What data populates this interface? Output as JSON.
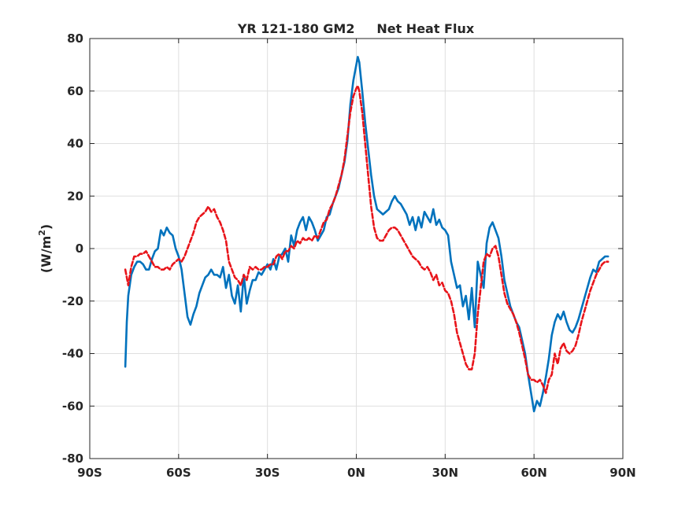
{
  "chart_data": {
    "type": "line",
    "title": "YR 121-180 GM2     Net Heat Flux",
    "ylabel": "(W/m",
    "ylabel_sup": "2",
    "ylabel_close": ")",
    "xlabel": "",
    "xlim": [
      -90,
      90
    ],
    "ylim": [
      -80,
      80
    ],
    "x_ticks": [
      -90,
      -60,
      -30,
      0,
      30,
      60,
      90
    ],
    "x_tick_labels": [
      "90S",
      "60S",
      "30S",
      "0N",
      "30N",
      "60N",
      "90N"
    ],
    "y_ticks": [
      -80,
      -60,
      -40,
      -20,
      0,
      20,
      40,
      60,
      80
    ],
    "y_tick_labels": [
      "-80",
      "-60",
      "-40",
      "-20",
      "0",
      "20",
      "40",
      "60",
      "80"
    ],
    "grid": true,
    "colors": {
      "series_blue": "#0072bd",
      "series_red": "#e8141a",
      "axis": "#262626",
      "grid": "#dfdfdf"
    },
    "series": [
      {
        "style": "solid",
        "color": "#0072bd",
        "points": [
          [
            -78,
            -45
          ],
          [
            -77.5,
            -28
          ],
          [
            -77,
            -18
          ],
          [
            -76,
            -10
          ],
          [
            -75,
            -7
          ],
          [
            -74,
            -5
          ],
          [
            -73,
            -5
          ],
          [
            -72,
            -6
          ],
          [
            -71,
            -8
          ],
          [
            -70,
            -8
          ],
          [
            -69,
            -4
          ],
          [
            -68,
            -1
          ],
          [
            -67,
            0
          ],
          [
            -66,
            7
          ],
          [
            -65,
            5
          ],
          [
            -64,
            8
          ],
          [
            -63,
            6
          ],
          [
            -62,
            5
          ],
          [
            -61,
            0
          ],
          [
            -60,
            -3
          ],
          [
            -59,
            -8
          ],
          [
            -58,
            -17
          ],
          [
            -57,
            -26
          ],
          [
            -56,
            -29
          ],
          [
            -55,
            -25
          ],
          [
            -54,
            -22
          ],
          [
            -53,
            -17
          ],
          [
            -52,
            -14
          ],
          [
            -51,
            -11
          ],
          [
            -50,
            -10
          ],
          [
            -49,
            -8
          ],
          [
            -48,
            -10
          ],
          [
            -47,
            -10
          ],
          [
            -46,
            -11
          ],
          [
            -45,
            -7
          ],
          [
            -44,
            -15
          ],
          [
            -43,
            -10
          ],
          [
            -42,
            -18
          ],
          [
            -41,
            -21
          ],
          [
            -40,
            -14
          ],
          [
            -39,
            -24
          ],
          [
            -38,
            -10
          ],
          [
            -37,
            -21
          ],
          [
            -36,
            -16
          ],
          [
            -35,
            -12
          ],
          [
            -34,
            -12
          ],
          [
            -33,
            -9
          ],
          [
            -32,
            -10
          ],
          [
            -31,
            -8
          ],
          [
            -30,
            -6
          ],
          [
            -29,
            -8
          ],
          [
            -28,
            -4
          ],
          [
            -27,
            -8
          ],
          [
            -26,
            -3
          ],
          [
            -25,
            -2
          ],
          [
            -24,
            0
          ],
          [
            -23,
            -5
          ],
          [
            -22,
            5
          ],
          [
            -21,
            1
          ],
          [
            -20,
            7
          ],
          [
            -19,
            10
          ],
          [
            -18,
            12
          ],
          [
            -17,
            7
          ],
          [
            -16,
            12
          ],
          [
            -15,
            10
          ],
          [
            -14,
            7
          ],
          [
            -13,
            3
          ],
          [
            -12,
            5
          ],
          [
            -11,
            7
          ],
          [
            -10,
            12
          ],
          [
            -9,
            13
          ],
          [
            -8,
            17
          ],
          [
            -7,
            20
          ],
          [
            -6,
            23
          ],
          [
            -5,
            28
          ],
          [
            -4,
            33
          ],
          [
            -3,
            41
          ],
          [
            -2,
            55
          ],
          [
            -1,
            64
          ],
          [
            0,
            70
          ],
          [
            0.5,
            73
          ],
          [
            1,
            71
          ],
          [
            2,
            60
          ],
          [
            3,
            48
          ],
          [
            4,
            38
          ],
          [
            5,
            28
          ],
          [
            6,
            20
          ],
          [
            7,
            15
          ],
          [
            8,
            14
          ],
          [
            9,
            13
          ],
          [
            10,
            14
          ],
          [
            11,
            15
          ],
          [
            12,
            18
          ],
          [
            13,
            20
          ],
          [
            14,
            18
          ],
          [
            15,
            17
          ],
          [
            16,
            15
          ],
          [
            17,
            13
          ],
          [
            18,
            9
          ],
          [
            19,
            12
          ],
          [
            20,
            7
          ],
          [
            21,
            12
          ],
          [
            22,
            8
          ],
          [
            23,
            14
          ],
          [
            24,
            12
          ],
          [
            25,
            10
          ],
          [
            26,
            15
          ],
          [
            27,
            9
          ],
          [
            28,
            11
          ],
          [
            29,
            8
          ],
          [
            30,
            7
          ],
          [
            31,
            5
          ],
          [
            32,
            -5
          ],
          [
            33,
            -10
          ],
          [
            34,
            -15
          ],
          [
            35,
            -14
          ],
          [
            36,
            -22
          ],
          [
            37,
            -18
          ],
          [
            38,
            -27
          ],
          [
            39,
            -15
          ],
          [
            40,
            -30
          ],
          [
            41,
            -5
          ],
          [
            42,
            -10
          ],
          [
            43,
            -15
          ],
          [
            44,
            2
          ],
          [
            45,
            8
          ],
          [
            46,
            10
          ],
          [
            47,
            7
          ],
          [
            48,
            4
          ],
          [
            49,
            -3
          ],
          [
            50,
            -12
          ],
          [
            51,
            -17
          ],
          [
            52,
            -22
          ],
          [
            53,
            -25
          ],
          [
            54,
            -28
          ],
          [
            55,
            -30
          ],
          [
            56,
            -35
          ],
          [
            57,
            -40
          ],
          [
            58,
            -48
          ],
          [
            59,
            -55
          ],
          [
            60,
            -62
          ],
          [
            61,
            -58
          ],
          [
            62,
            -60
          ],
          [
            63,
            -55
          ],
          [
            64,
            -49
          ],
          [
            65,
            -42
          ],
          [
            66,
            -33
          ],
          [
            67,
            -28
          ],
          [
            68,
            -25
          ],
          [
            69,
            -27
          ],
          [
            70,
            -24
          ],
          [
            71,
            -28
          ],
          [
            72,
            -31
          ],
          [
            73,
            -32
          ],
          [
            74,
            -30
          ],
          [
            75,
            -27
          ],
          [
            76,
            -23
          ],
          [
            77,
            -19
          ],
          [
            78,
            -15
          ],
          [
            79,
            -11
          ],
          [
            80,
            -8
          ],
          [
            81,
            -9
          ],
          [
            82,
            -5
          ],
          [
            83,
            -4
          ],
          [
            84,
            -3
          ],
          [
            85,
            -3
          ]
        ]
      },
      {
        "style": "dashed",
        "color": "#e8141a",
        "points": [
          [
            -78,
            -8
          ],
          [
            -77,
            -14
          ],
          [
            -76,
            -7
          ],
          [
            -75,
            -3
          ],
          [
            -74,
            -3
          ],
          [
            -73,
            -2
          ],
          [
            -72,
            -2
          ],
          [
            -71,
            -1
          ],
          [
            -70,
            -3
          ],
          [
            -69,
            -5
          ],
          [
            -68,
            -7
          ],
          [
            -67,
            -7
          ],
          [
            -66,
            -8
          ],
          [
            -65,
            -8
          ],
          [
            -64,
            -7
          ],
          [
            -63,
            -8
          ],
          [
            -62,
            -6
          ],
          [
            -61,
            -5
          ],
          [
            -60,
            -4
          ],
          [
            -59,
            -5
          ],
          [
            -58,
            -3
          ],
          [
            -57,
            0
          ],
          [
            -56,
            3
          ],
          [
            -55,
            6
          ],
          [
            -54,
            10
          ],
          [
            -53,
            12
          ],
          [
            -52,
            13
          ],
          [
            -51,
            14
          ],
          [
            -50,
            16
          ],
          [
            -49,
            14
          ],
          [
            -48,
            15
          ],
          [
            -47,
            12
          ],
          [
            -46,
            10
          ],
          [
            -45,
            7
          ],
          [
            -44,
            3
          ],
          [
            -43,
            -5
          ],
          [
            -42,
            -8
          ],
          [
            -41,
            -11
          ],
          [
            -40,
            -12
          ],
          [
            -39,
            -14
          ],
          [
            -38,
            -10
          ],
          [
            -37,
            -12
          ],
          [
            -36,
            -7
          ],
          [
            -35,
            -8
          ],
          [
            -34,
            -7
          ],
          [
            -33,
            -8
          ],
          [
            -32,
            -8
          ],
          [
            -31,
            -7
          ],
          [
            -30,
            -7
          ],
          [
            -29,
            -6
          ],
          [
            -28,
            -6
          ],
          [
            -27,
            -3
          ],
          [
            -26,
            -2
          ],
          [
            -25,
            -4
          ],
          [
            -24,
            -1
          ],
          [
            -23,
            -1
          ],
          [
            -22,
            1
          ],
          [
            -21,
            0
          ],
          [
            -20,
            3
          ],
          [
            -19,
            2
          ],
          [
            -18,
            4
          ],
          [
            -17,
            3
          ],
          [
            -16,
            4
          ],
          [
            -15,
            3
          ],
          [
            -14,
            5
          ],
          [
            -13,
            4
          ],
          [
            -12,
            7
          ],
          [
            -11,
            10
          ],
          [
            -10,
            11
          ],
          [
            -9,
            15
          ],
          [
            -8,
            17
          ],
          [
            -7,
            20
          ],
          [
            -6,
            24
          ],
          [
            -5,
            28
          ],
          [
            -4,
            34
          ],
          [
            -3,
            43
          ],
          [
            -2,
            52
          ],
          [
            -1,
            58
          ],
          [
            0,
            61
          ],
          [
            0.5,
            62
          ],
          [
            1,
            60
          ],
          [
            2,
            52
          ],
          [
            3,
            40
          ],
          [
            4,
            28
          ],
          [
            5,
            16
          ],
          [
            6,
            8
          ],
          [
            7,
            4
          ],
          [
            8,
            3
          ],
          [
            9,
            3
          ],
          [
            10,
            5
          ],
          [
            11,
            7
          ],
          [
            12,
            8
          ],
          [
            13,
            8
          ],
          [
            14,
            7
          ],
          [
            15,
            5
          ],
          [
            16,
            3
          ],
          [
            17,
            1
          ],
          [
            18,
            -1
          ],
          [
            19,
            -3
          ],
          [
            20,
            -4
          ],
          [
            21,
            -5
          ],
          [
            22,
            -7
          ],
          [
            23,
            -8
          ],
          [
            24,
            -7
          ],
          [
            25,
            -9
          ],
          [
            26,
            -12
          ],
          [
            27,
            -10
          ],
          [
            28,
            -14
          ],
          [
            29,
            -13
          ],
          [
            30,
            -16
          ],
          [
            31,
            -17
          ],
          [
            32,
            -20
          ],
          [
            33,
            -25
          ],
          [
            34,
            -32
          ],
          [
            35,
            -36
          ],
          [
            36,
            -40
          ],
          [
            37,
            -44
          ],
          [
            38,
            -46
          ],
          [
            39,
            -46
          ],
          [
            40,
            -40
          ],
          [
            41,
            -25
          ],
          [
            42,
            -15
          ],
          [
            43,
            -5
          ],
          [
            44,
            -2
          ],
          [
            45,
            -3
          ],
          [
            46,
            0
          ],
          [
            47,
            1
          ],
          [
            48,
            -3
          ],
          [
            49,
            -10
          ],
          [
            50,
            -17
          ],
          [
            51,
            -21
          ],
          [
            52,
            -23
          ],
          [
            53,
            -25
          ],
          [
            54,
            -28
          ],
          [
            55,
            -32
          ],
          [
            56,
            -37
          ],
          [
            57,
            -42
          ],
          [
            58,
            -48
          ],
          [
            59,
            -50
          ],
          [
            60,
            -50
          ],
          [
            61,
            -51
          ],
          [
            62,
            -50
          ],
          [
            63,
            -52
          ],
          [
            64,
            -55
          ],
          [
            65,
            -50
          ],
          [
            66,
            -48
          ],
          [
            67,
            -40
          ],
          [
            68,
            -44
          ],
          [
            69,
            -38
          ],
          [
            70,
            -36
          ],
          [
            71,
            -39
          ],
          [
            72,
            -40
          ],
          [
            73,
            -39
          ],
          [
            74,
            -37
          ],
          [
            75,
            -33
          ],
          [
            76,
            -28
          ],
          [
            77,
            -24
          ],
          [
            78,
            -20
          ],
          [
            79,
            -16
          ],
          [
            80,
            -13
          ],
          [
            81,
            -10
          ],
          [
            82,
            -8
          ],
          [
            83,
            -6
          ],
          [
            84,
            -5
          ],
          [
            85,
            -5
          ]
        ]
      }
    ]
  }
}
